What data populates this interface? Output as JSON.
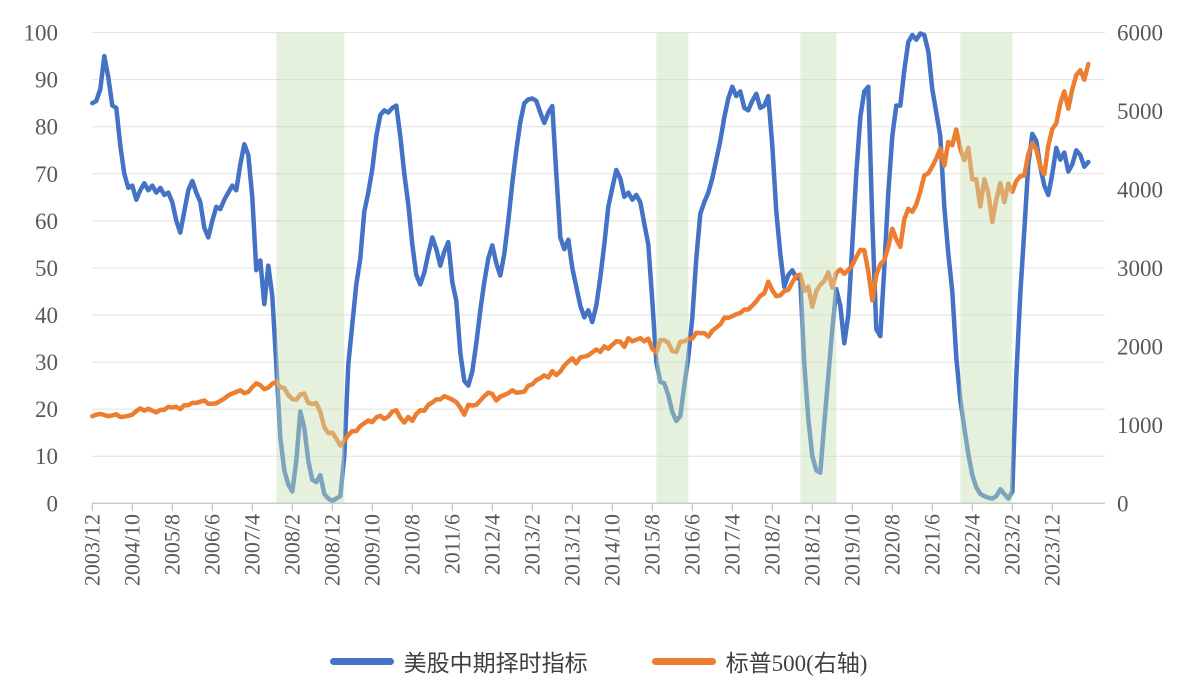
{
  "chart_data": {
    "type": "line",
    "title": "",
    "frequency": "monthly",
    "x_start": "2003-12",
    "x_end": "2024-09",
    "x_tick_labels": [
      "2003/12",
      "2004/10",
      "2005/8",
      "2006/6",
      "2007/4",
      "2008/2",
      "2008/12",
      "2009/10",
      "2010/8",
      "2011/6",
      "2012/4",
      "2013/2",
      "2013/12",
      "2014/10",
      "2015/8",
      "2016/6",
      "2017/4",
      "2018/2",
      "2018/12",
      "2019/10",
      "2020/8",
      "2021/6",
      "2022/4",
      "2023/2",
      "2023/12"
    ],
    "x_tick_interval_months": 10,
    "left_axis": {
      "min": 0,
      "max": 100,
      "step": 10,
      "tick_labels": [
        "0",
        "10",
        "20",
        "30",
        "40",
        "50",
        "60",
        "70",
        "80",
        "90",
        "100"
      ]
    },
    "right_axis": {
      "min": 0,
      "max": 6000,
      "step": 1000,
      "tick_labels": [
        "0",
        "1000",
        "2000",
        "3000",
        "4000",
        "5000",
        "6000"
      ]
    },
    "grid": true,
    "legend_position": "bottom",
    "shade_color": "#C6E0B4",
    "shade_opacity": 0.45,
    "shaded_periods": [
      {
        "from": "2007-10",
        "to": "2009-03"
      },
      {
        "from": "2015-09",
        "to": "2016-05"
      },
      {
        "from": "2018-09",
        "to": "2019-06"
      },
      {
        "from": "2022-01",
        "to": "2023-02"
      }
    ],
    "series": [
      {
        "name": "美股中期择时指标",
        "axis": "left",
        "color": "#4472C4",
        "values": [
          85,
          85.5,
          88,
          95,
          90.5,
          84.5,
          84,
          76,
          70,
          67,
          67.5,
          64.5,
          66.5,
          68,
          66.5,
          67.5,
          66,
          67,
          65.5,
          66,
          64,
          60,
          57.5,
          62,
          66.5,
          68.5,
          66,
          64,
          58.5,
          56.5,
          60,
          63,
          62.5,
          64.5,
          66,
          67.5,
          66.5,
          72,
          76.3,
          74,
          65,
          49.5,
          51.6,
          42.3,
          50.5,
          44,
          29.5,
          14,
          7,
          4,
          2.5,
          9,
          19.5,
          16,
          9,
          5,
          4.5,
          6,
          2,
          1,
          0.5,
          1,
          1.5,
          10,
          29.5,
          38,
          46.5,
          52,
          62,
          66,
          71,
          78,
          82.5,
          83.5,
          83,
          84,
          84.5,
          78,
          70,
          63.5,
          55,
          48.5,
          46.5,
          49,
          53,
          56.5,
          54,
          50.5,
          53.5,
          55.5,
          47,
          43,
          32,
          26,
          25,
          28,
          34,
          41,
          47,
          52,
          54.8,
          51,
          48.4,
          53,
          60,
          68,
          75,
          81,
          85,
          85.8,
          86,
          85.5,
          83,
          80.8,
          83,
          84.4,
          70,
          56.5,
          54,
          56,
          50,
          46,
          42,
          39.5,
          41,
          38.5,
          42,
          48,
          55,
          63,
          67,
          70.8,
          69,
          65.1,
          66,
          64.5,
          65.5,
          64,
          59.4,
          55,
          43,
          30.1,
          25.8,
          25.5,
          23,
          19.4,
          17.5,
          18.5,
          25,
          31,
          39.4,
          52,
          61.5,
          64,
          66,
          69,
          73,
          77,
          82,
          86,
          88.5,
          86.5,
          87.5,
          84,
          83.5,
          85.5,
          87,
          84,
          84.5,
          86.5,
          76,
          62,
          53,
          46,
          48.5,
          49.5,
          48,
          47.5,
          29.5,
          18,
          10,
          7,
          6.5,
          17,
          27,
          37,
          45.5,
          42,
          34,
          40,
          55,
          70,
          82,
          87.5,
          88.5,
          60,
          37,
          35.5,
          50,
          66,
          78,
          84.5,
          84.5,
          92,
          98,
          99.5,
          98.5,
          99.8,
          99.5,
          96,
          88,
          83,
          78,
          63,
          53,
          45,
          31,
          22,
          16,
          10.5,
          6,
          3.4,
          2,
          1.5,
          1.2,
          1,
          1.5,
          3,
          2,
          1,
          2.5,
          27,
          44.5,
          58,
          72,
          78.5,
          77,
          71.5,
          67.5,
          65.5,
          70,
          75.5,
          73,
          74.5,
          70.5,
          72,
          75,
          74,
          71.5,
          72.5
        ]
      },
      {
        "name": "标普500(右轴)",
        "axis": "right",
        "color": "#ED7D31",
        "values": [
          1110,
          1130,
          1140,
          1125,
          1110,
          1120,
          1135,
          1100,
          1105,
          1115,
          1130,
          1175,
          1210,
          1180,
          1205,
          1180,
          1160,
          1190,
          1190,
          1230,
          1220,
          1230,
          1200,
          1250,
          1250,
          1280,
          1280,
          1295,
          1310,
          1270,
          1270,
          1275,
          1305,
          1335,
          1375,
          1400,
          1420,
          1440,
          1405,
          1420,
          1480,
          1530,
          1505,
          1455,
          1475,
          1525,
          1550,
          1480,
          1468,
          1380,
          1330,
          1320,
          1385,
          1400,
          1280,
          1265,
          1280,
          1165,
          970,
          895,
          900,
          825,
          735,
          795,
          870,
          920,
          920,
          985,
          1020,
          1055,
          1035,
          1095,
          1115,
          1075,
          1105,
          1170,
          1185,
          1090,
          1030,
          1100,
          1050,
          1140,
          1185,
          1180,
          1255,
          1285,
          1325,
          1325,
          1365,
          1345,
          1320,
          1290,
          1220,
          1130,
          1255,
          1245,
          1255,
          1310,
          1365,
          1410,
          1395,
          1310,
          1360,
          1380,
          1405,
          1440,
          1410,
          1415,
          1425,
          1500,
          1515,
          1570,
          1595,
          1630,
          1605,
          1685,
          1635,
          1680,
          1755,
          1805,
          1850,
          1785,
          1860,
          1870,
          1885,
          1925,
          1960,
          1930,
          2000,
          1970,
          2020,
          2065,
          2060,
          1995,
          2105,
          2065,
          2085,
          2105,
          2065,
          2100,
          1970,
          1920,
          2080,
          2080,
          2045,
          1940,
          1930,
          2060,
          2065,
          2095,
          2100,
          2175,
          2170,
          2170,
          2125,
          2200,
          2240,
          2280,
          2365,
          2365,
          2385,
          2410,
          2425,
          2470,
          2470,
          2520,
          2575,
          2645,
          2675,
          2825,
          2715,
          2640,
          2650,
          2705,
          2720,
          2815,
          2900,
          2915,
          2710,
          2760,
          2505,
          2705,
          2785,
          2835,
          2945,
          2750,
          2940,
          2980,
          2925,
          2975,
          3035,
          3140,
          3230,
          3225,
          2955,
          2585,
          2910,
          3045,
          3100,
          3270,
          3500,
          3365,
          3270,
          3620,
          3755,
          3715,
          3810,
          3975,
          4180,
          4205,
          4295,
          4395,
          4520,
          4305,
          4605,
          4565,
          4765,
          4515,
          4375,
          4530,
          4130,
          4130,
          3785,
          4130,
          3955,
          3585,
          3870,
          4080,
          3840,
          4075,
          3970,
          4110,
          4170,
          4180,
          4450,
          4590,
          4510,
          4290,
          4195,
          4560,
          4770,
          4845,
          5095,
          5250,
          5030,
          5280,
          5460,
          5520,
          5400,
          5600
        ]
      }
    ],
    "style": {
      "grid_color": "#E0E0E0",
      "axis_color": "#C9C9C9",
      "tick_label_color": "#595959",
      "line_width": 4.5
    }
  },
  "legend": {
    "series1": "美股中期择时指标",
    "series2": "标普500(右轴)"
  }
}
